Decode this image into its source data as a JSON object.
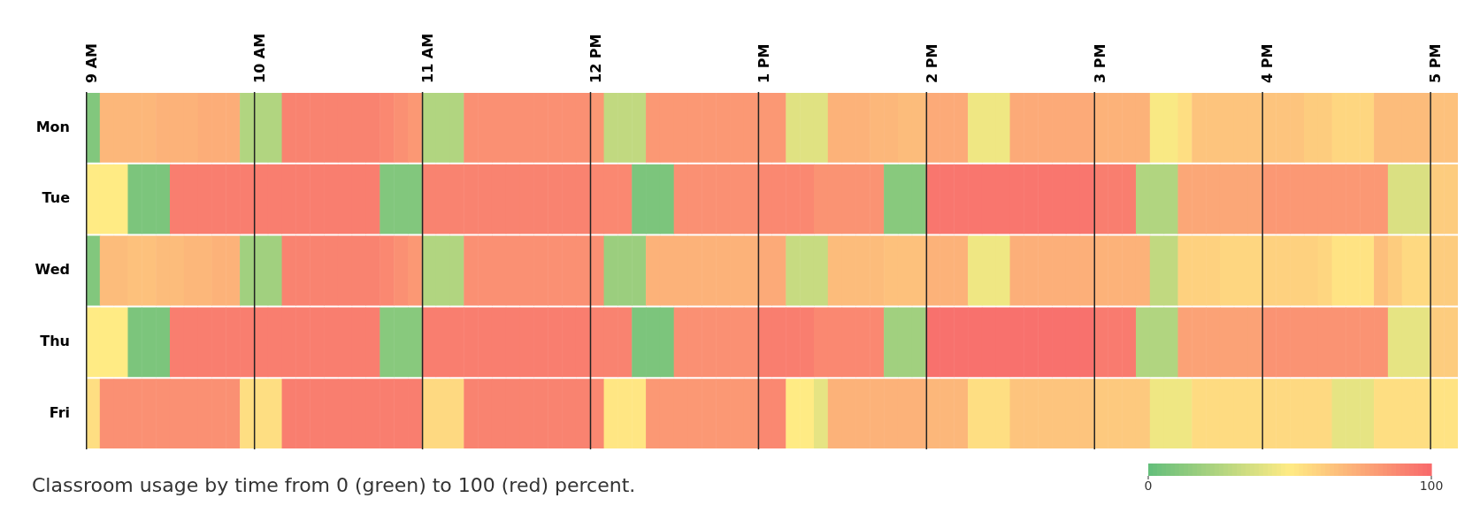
{
  "chart_data": {
    "type": "heatmap",
    "categories": [
      "9 AM",
      null,
      null,
      null,
      null,
      null,
      null,
      null,
      null,
      null,
      null,
      null,
      "10 AM",
      null,
      null,
      null,
      null,
      null,
      null,
      null,
      null,
      null,
      null,
      null,
      "11 AM",
      null,
      null,
      null,
      null,
      null,
      null,
      null,
      null,
      null,
      null,
      null,
      "12 PM",
      null,
      null,
      null,
      null,
      null,
      null,
      null,
      null,
      null,
      null,
      null,
      "1 PM",
      null,
      null,
      null,
      null,
      null,
      null,
      null,
      null,
      null,
      null,
      null,
      "2 PM",
      null,
      null,
      null,
      null,
      null,
      null,
      null,
      null,
      null,
      null,
      null,
      "3 PM",
      null,
      null,
      null,
      null,
      null,
      null,
      null,
      null,
      null,
      null,
      null,
      "4 PM",
      null,
      null,
      null,
      null,
      null,
      null,
      null,
      null,
      null,
      null,
      null,
      "5 PM",
      null
    ],
    "y_categories": [
      "Mon",
      "Tue",
      "Wed",
      "Thu",
      "Fri"
    ],
    "cells": [
      [
        10,
        70,
        70,
        70,
        70,
        72,
        72,
        72,
        74,
        74,
        74,
        25,
        25,
        25,
        90,
        90,
        90,
        90,
        90,
        90,
        90,
        88,
        85,
        82,
        25,
        25,
        25,
        85,
        85,
        85,
        85,
        85,
        85,
        85,
        85,
        85,
        82,
        30,
        30,
        30,
        82,
        82,
        82,
        82,
        82,
        82,
        82,
        82,
        82,
        82,
        40,
        40,
        40,
        72,
        72,
        72,
        70,
        70,
        68,
        68,
        75,
        75,
        75,
        45,
        45,
        45,
        75,
        75,
        75,
        75,
        75,
        75,
        72,
        72,
        72,
        72,
        48,
        48,
        55,
        65,
        65,
        65,
        65,
        65,
        65,
        65,
        65,
        62,
        62,
        58,
        58,
        58,
        68,
        68,
        68,
        68,
        66,
        66
      ],
      [
        50,
        50,
        50,
        8,
        8,
        8,
        92,
        92,
        92,
        92,
        92,
        92,
        92,
        92,
        92,
        92,
        92,
        92,
        92,
        92,
        92,
        10,
        10,
        10,
        90,
        90,
        90,
        90,
        90,
        90,
        90,
        90,
        90,
        90,
        90,
        90,
        88,
        88,
        88,
        8,
        8,
        8,
        85,
        85,
        85,
        85,
        85,
        85,
        88,
        88,
        88,
        88,
        84,
        84,
        84,
        84,
        84,
        12,
        12,
        12,
        95,
        95,
        95,
        95,
        95,
        95,
        95,
        95,
        95,
        95,
        95,
        95,
        92,
        92,
        92,
        25,
        25,
        25,
        76,
        76,
        76,
        76,
        76,
        76,
        82,
        82,
        82,
        82,
        82,
        82,
        82,
        82,
        82,
        38,
        38,
        38,
        62,
        62
      ],
      [
        10,
        68,
        68,
        66,
        66,
        68,
        68,
        70,
        70,
        72,
        72,
        20,
        20,
        20,
        90,
        90,
        90,
        90,
        90,
        90,
        90,
        88,
        85,
        82,
        25,
        25,
        25,
        85,
        85,
        85,
        85,
        85,
        85,
        85,
        85,
        85,
        85,
        18,
        18,
        18,
        72,
        72,
        72,
        72,
        72,
        72,
        72,
        72,
        75,
        75,
        32,
        32,
        32,
        68,
        68,
        68,
        68,
        66,
        66,
        66,
        72,
        72,
        72,
        45,
        45,
        45,
        73,
        73,
        73,
        73,
        73,
        73,
        72,
        72,
        72,
        72,
        30,
        30,
        60,
        60,
        60,
        58,
        58,
        58,
        60,
        60,
        60,
        60,
        58,
        53,
        53,
        53,
        67,
        62,
        57,
        57,
        62,
        62
      ],
      [
        50,
        50,
        50,
        8,
        8,
        8,
        92,
        92,
        92,
        92,
        92,
        92,
        92,
        92,
        92,
        92,
        92,
        92,
        92,
        92,
        92,
        12,
        12,
        12,
        92,
        92,
        92,
        92,
        92,
        92,
        92,
        92,
        92,
        92,
        92,
        92,
        90,
        90,
        90,
        8,
        8,
        8,
        85,
        85,
        85,
        85,
        85,
        85,
        92,
        92,
        92,
        92,
        88,
        88,
        88,
        88,
        88,
        20,
        20,
        20,
        97,
        97,
        97,
        97,
        97,
        97,
        97,
        97,
        97,
        97,
        97,
        97,
        93,
        93,
        93,
        25,
        25,
        25,
        78,
        78,
        78,
        78,
        78,
        78,
        84,
        84,
        84,
        84,
        84,
        84,
        84,
        84,
        84,
        42,
        42,
        42,
        62,
        62
      ],
      [
        55,
        85,
        85,
        85,
        85,
        85,
        85,
        85,
        85,
        85,
        85,
        55,
        55,
        55,
        92,
        92,
        92,
        92,
        92,
        92,
        92,
        92,
        92,
        92,
        57,
        57,
        57,
        90,
        90,
        90,
        90,
        90,
        90,
        90,
        90,
        90,
        88,
        52,
        52,
        52,
        82,
        82,
        82,
        82,
        82,
        82,
        82,
        82,
        88,
        88,
        50,
        50,
        42,
        72,
        72,
        72,
        72,
        72,
        72,
        72,
        70,
        70,
        70,
        55,
        55,
        55,
        65,
        65,
        65,
        65,
        65,
        65,
        63,
        63,
        63,
        63,
        45,
        45,
        45,
        56,
        56,
        56,
        56,
        56,
        57,
        57,
        57,
        57,
        57,
        42,
        42,
        42,
        55,
        55,
        55,
        55,
        53,
        53
      ]
    ],
    "clim": [
      0,
      100
    ],
    "cticks": [
      0,
      100
    ],
    "grid": "x",
    "annotations": [
      "Classroom usage by time from 0 (green) to 100 (red) percent."
    ]
  }
}
